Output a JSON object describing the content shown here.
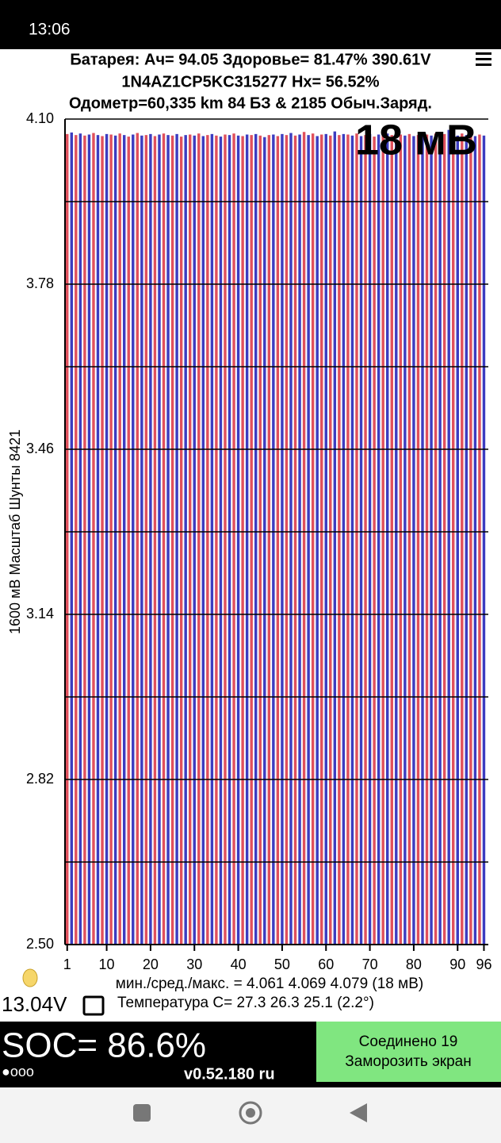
{
  "status_bar": {
    "time": "13:06"
  },
  "header": {
    "line1": "Батарея:  Ач= 94.05  Здоровье= 81.47%   390.61V",
    "line2": "1N4AZ1CP5KC315277   Hx= 56.52%",
    "line3": "Одометр=60,335 km 84 БЗ & 2185 Обыч.Заряд."
  },
  "chart_data": {
    "type": "bar",
    "annotation": "18 мВ",
    "ylabel": "1600 мВ Масштаб   Шунты 8421",
    "x": [
      1,
      2,
      3,
      4,
      5,
      6,
      7,
      8,
      9,
      10,
      11,
      12,
      13,
      14,
      15,
      16,
      17,
      18,
      19,
      20,
      21,
      22,
      23,
      24,
      25,
      26,
      27,
      28,
      29,
      30,
      31,
      32,
      33,
      34,
      35,
      36,
      37,
      38,
      39,
      40,
      41,
      42,
      43,
      44,
      45,
      46,
      47,
      48,
      49,
      50,
      51,
      52,
      53,
      54,
      55,
      56,
      57,
      58,
      59,
      60,
      61,
      62,
      63,
      64,
      65,
      66,
      67,
      68,
      69,
      70,
      71,
      72,
      73,
      74,
      75,
      76,
      77,
      78,
      79,
      80,
      81,
      82,
      83,
      84,
      85,
      86,
      87,
      88,
      89,
      90,
      91,
      92,
      93,
      94,
      95,
      96
    ],
    "values": [
      4.071,
      4.074,
      4.069,
      4.072,
      4.068,
      4.07,
      4.073,
      4.069,
      4.067,
      4.071,
      4.07,
      4.068,
      4.072,
      4.069,
      4.066,
      4.07,
      4.073,
      4.068,
      4.069,
      4.071,
      4.067,
      4.07,
      4.072,
      4.069,
      4.068,
      4.071,
      4.066,
      4.069,
      4.07,
      4.068,
      4.072,
      4.067,
      4.069,
      4.071,
      4.068,
      4.066,
      4.07,
      4.069,
      4.072,
      4.068,
      4.067,
      4.07,
      4.069,
      4.071,
      4.068,
      4.065,
      4.069,
      4.07,
      4.067,
      4.071,
      4.069,
      4.073,
      4.068,
      4.07,
      4.075,
      4.069,
      4.072,
      4.067,
      4.07,
      4.071,
      4.068,
      4.076,
      4.069,
      4.071,
      4.07,
      4.068,
      4.072,
      4.067,
      4.069,
      4.071,
      4.066,
      4.07,
      4.068,
      4.072,
      4.069,
      4.061,
      4.07,
      4.068,
      4.071,
      4.067,
      4.069,
      4.074,
      4.07,
      4.068,
      4.072,
      4.069,
      4.071,
      4.079,
      4.07,
      4.068,
      4.072,
      4.069,
      4.071,
      4.067,
      4.07,
      4.068
    ],
    "colors": [
      "#e0505c",
      "#3c3cc0"
    ],
    "xlim": [
      0.5,
      97
    ],
    "xticks": [
      1,
      10,
      20,
      30,
      40,
      50,
      60,
      70,
      80,
      90,
      96
    ],
    "ylim": [
      2.5,
      4.1
    ],
    "yticks": [
      {
        "value": 2.5,
        "label": "2.50"
      },
      2.82,
      3.14,
      3.46,
      3.78,
      {
        "value": 4.1,
        "label": "4.10"
      }
    ],
    "ygrid": [
      2.66,
      2.98,
      3.3,
      3.62,
      3.94
    ],
    "grid": true
  },
  "stats": {
    "minmax": "мин./сред./макс. = 4.061 4.069 4.079  (18 мВ)",
    "voltage_12v": "13.04V",
    "temperature": "Температура С= 27.3  26.3  25.1  (2.2°)"
  },
  "footer": {
    "soc": "SOC= 86.6%",
    "dots": "●ooo",
    "version": "v0.52.180 ru",
    "button_line1": "Соединено 19",
    "button_line2": "Заморозить экран"
  }
}
